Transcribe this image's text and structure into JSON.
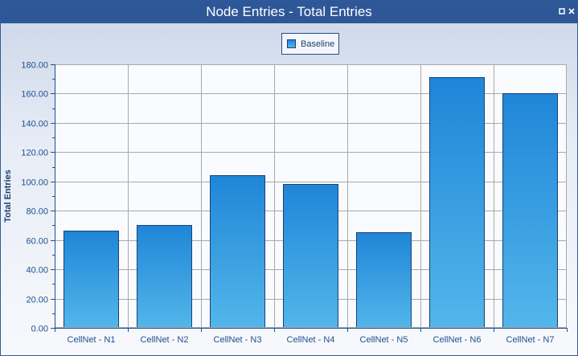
{
  "window": {
    "title": "Node Entries - Total Entries",
    "controls": [
      "restore-icon",
      "close-icon"
    ]
  },
  "colors": {
    "titlebar": "#2d5797",
    "bar_top": "#1f86d8",
    "bar_bottom": "#53b6ea",
    "bar_border": "#1d3f73",
    "grid": "#a9a9a9",
    "axis_text": "#1f4f8f"
  },
  "chart_data": {
    "type": "bar",
    "title": "",
    "xlabel": "",
    "ylabel": "Total Entries",
    "legend": {
      "position": "top-center",
      "entries": [
        "Baseline"
      ]
    },
    "categories": [
      "CellNet - N1",
      "CellNet - N2",
      "CellNet - N3",
      "CellNet - N4",
      "CellNet - N5",
      "CellNet - N6",
      "CellNet - N7"
    ],
    "series": [
      {
        "name": "Baseline",
        "values": [
          66.5,
          70,
          104.5,
          98.5,
          65.5,
          171,
          160
        ]
      }
    ],
    "ylim": [
      0,
      180
    ],
    "yticks": [
      "0.00",
      "20.00",
      "40.00",
      "60.00",
      "80.00",
      "100.00",
      "120.00",
      "140.00",
      "160.00",
      "180.00"
    ],
    "grid": true
  }
}
